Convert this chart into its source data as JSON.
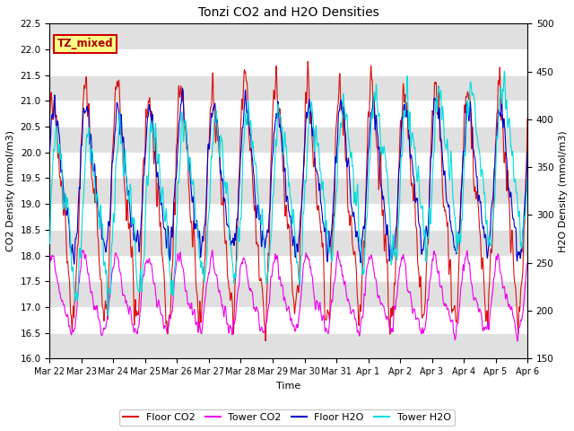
{
  "title": "Tonzi CO2 and H2O Densities",
  "xlabel": "Time",
  "ylabel_left": "CO2 Density (mmol/m3)",
  "ylabel_right": "H2O Density (mmol/m3)",
  "ylim_left": [
    16.0,
    22.5
  ],
  "ylim_right": [
    150,
    500
  ],
  "yticks_left": [
    16.0,
    16.5,
    17.0,
    17.5,
    18.0,
    18.5,
    19.0,
    19.5,
    20.0,
    20.5,
    21.0,
    21.5,
    22.0,
    22.5
  ],
  "yticks_right": [
    150,
    200,
    250,
    300,
    350,
    400,
    450,
    500
  ],
  "xtick_labels": [
    "Mar 22",
    "Mar 23",
    "Mar 24",
    "Mar 25",
    "Mar 26",
    "Mar 27",
    "Mar 28",
    "Mar 29",
    "Mar 30",
    "Mar 31",
    "Apr 1",
    "Apr 2",
    "Apr 3",
    "Apr 4",
    "Apr 5",
    "Apr 6"
  ],
  "colors": {
    "floor_co2": "#dd1111",
    "tower_co2": "#ee00ee",
    "floor_h2o": "#0000cc",
    "tower_h2o": "#00dddd"
  },
  "legend_labels": [
    "Floor CO2",
    "Tower CO2",
    "Floor H2O",
    "Tower H2O"
  ],
  "tz_label": "TZ_mixed",
  "tz_bg_color": "#ffff88",
  "tz_border_color": "#cc0000",
  "bg_color": "#ffffff",
  "band_color": "#e0e0e0",
  "n_points": 2160,
  "n_days": 15,
  "seed": 42
}
